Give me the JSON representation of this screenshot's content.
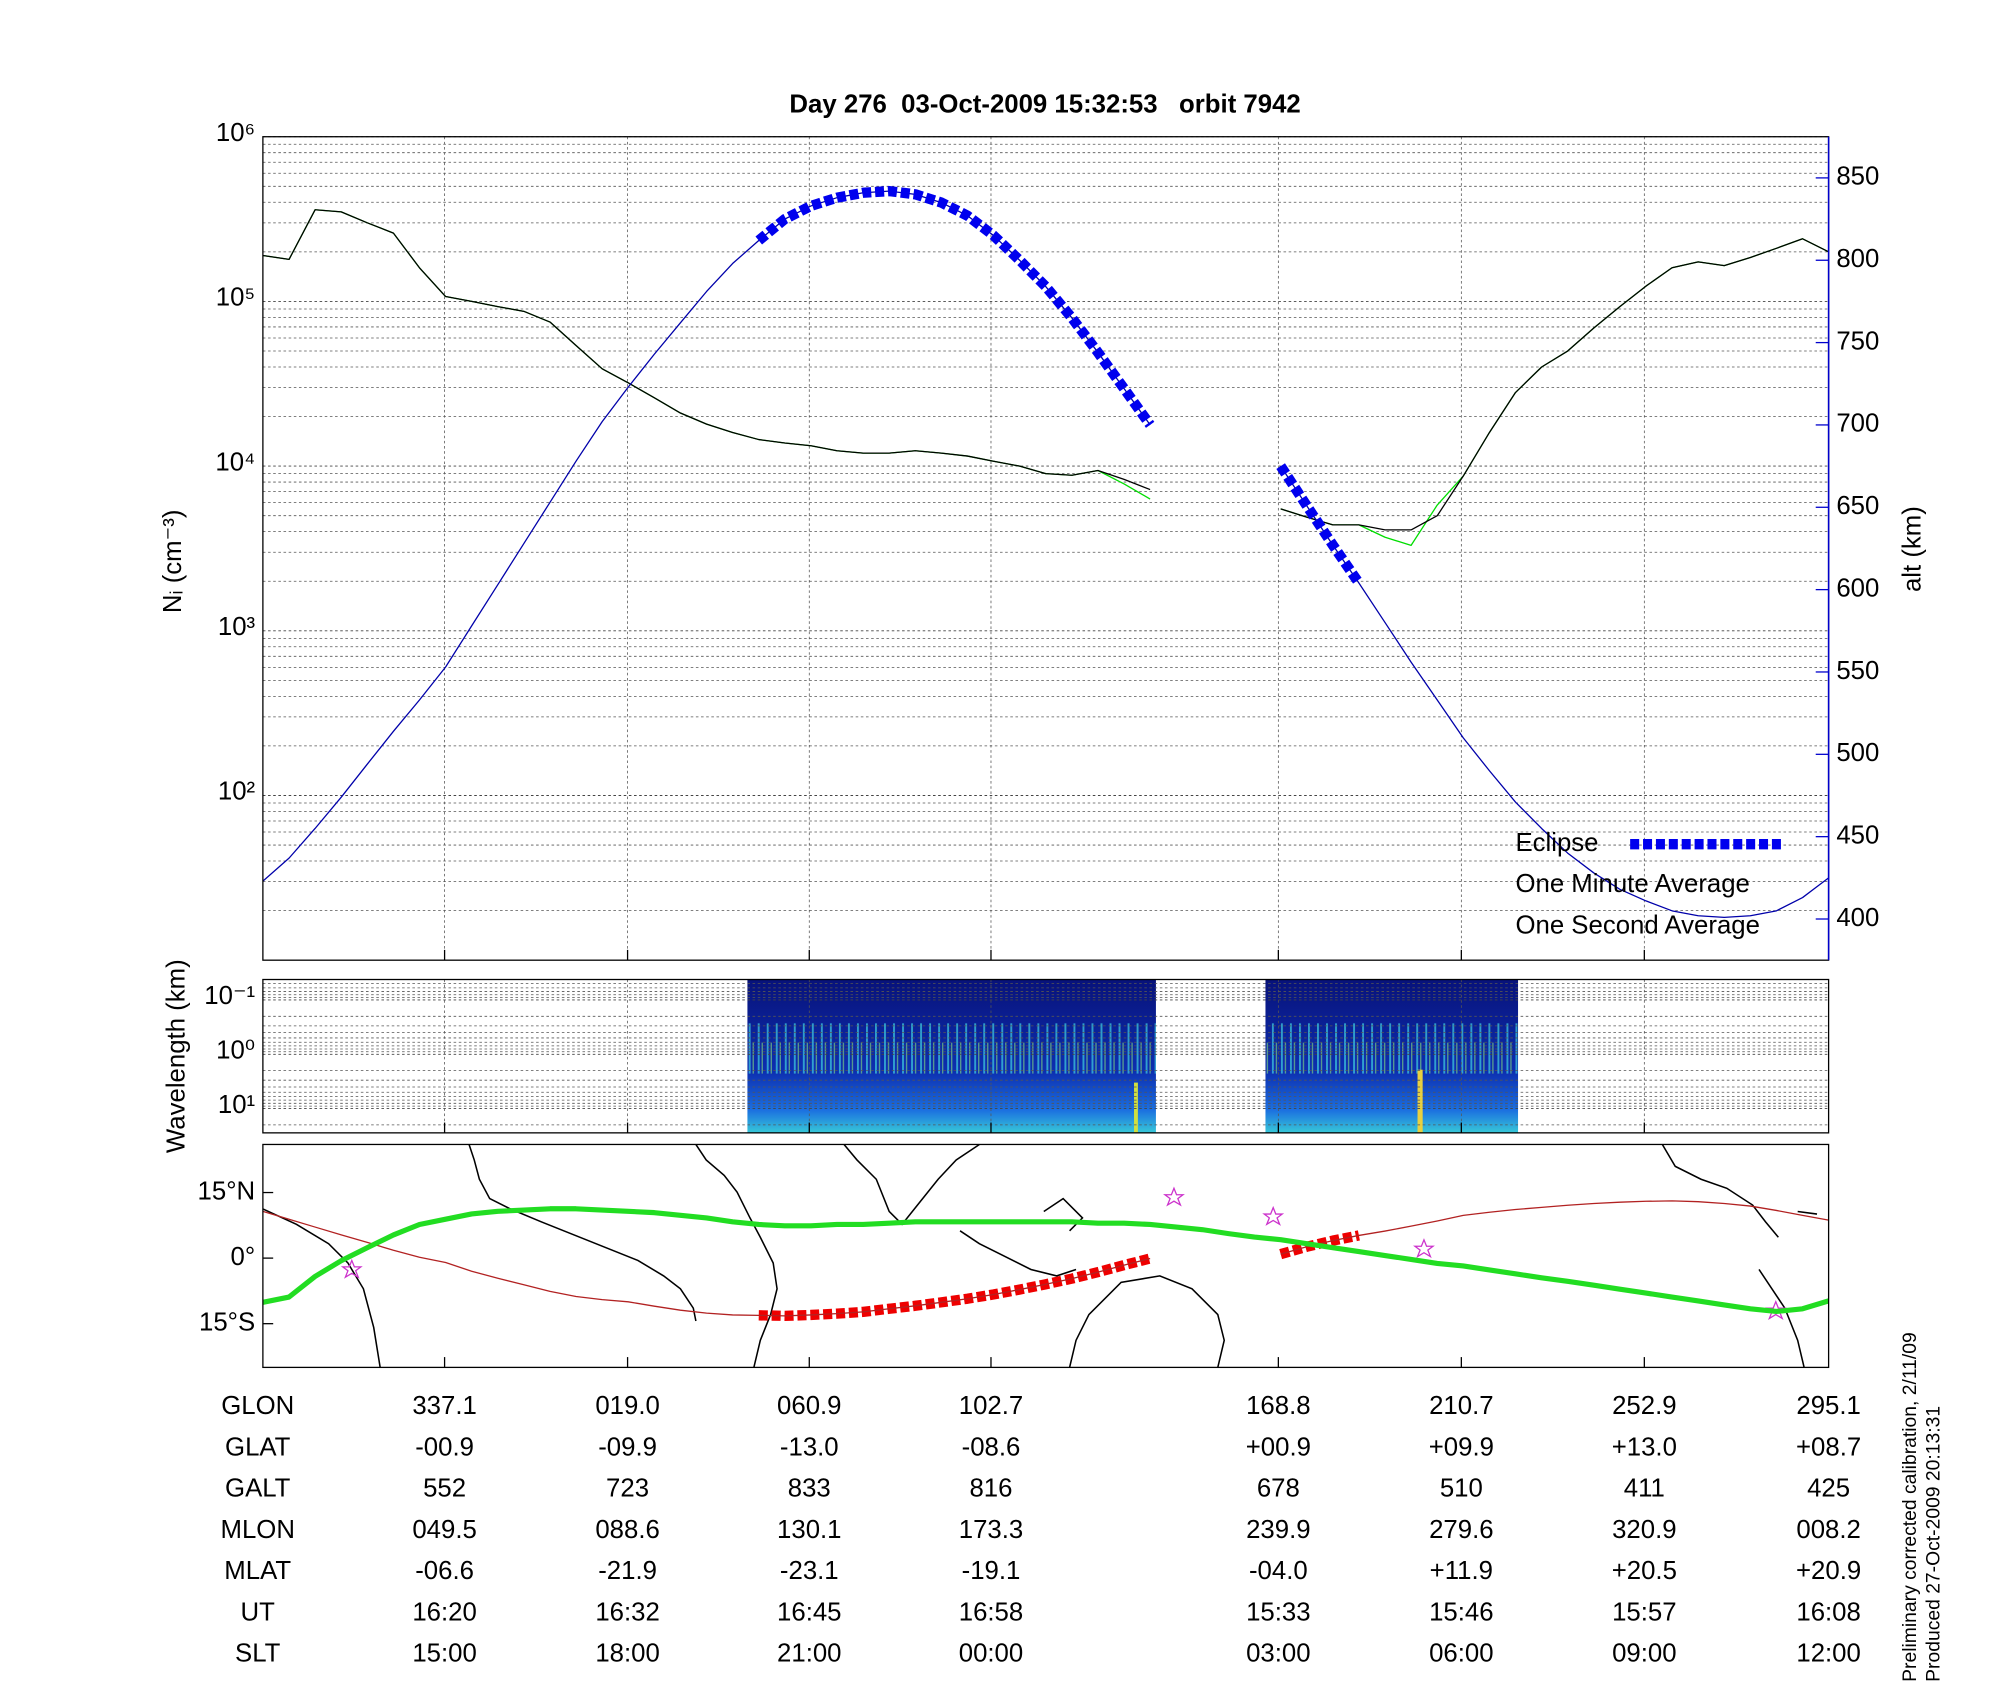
{
  "chart_data": [
    {
      "type": "line",
      "title": "Day 276  03-Oct-2009 15:32:53   orbit 7942",
      "ylabel": "Nᵢ (cm⁻³)",
      "y2label": "alt (km)",
      "y2_color": "#0000cc",
      "log_y": true,
      "grid": true,
      "minor_grid": true,
      "legend": "lower right",
      "ylim": [
        10,
        1000000
      ],
      "yticks": [
        {
          "value": 100,
          "label": "10²"
        },
        {
          "value": 1000,
          "label": "10³"
        },
        {
          "value": 10000,
          "label": "10⁴"
        },
        {
          "value": 100000,
          "label": "10⁵"
        },
        {
          "value": 1000000,
          "label": "10⁶"
        }
      ],
      "y2lim": [
        375,
        875
      ],
      "y2ticks": [
        400,
        450,
        500,
        550,
        600,
        650,
        700,
        750,
        800,
        850
      ],
      "series": [
        {
          "name": "Eclipse",
          "color": "#0000ee",
          "axis": "y2",
          "style": "eclipse",
          "values": [
            null,
            null,
            null,
            null,
            null,
            null,
            null,
            null,
            null,
            null,
            null,
            null,
            null,
            null,
            null,
            null,
            null,
            null,
            null,
            812,
            825,
            833,
            838,
            841,
            842,
            840,
            835,
            827,
            815,
            800,
            784,
            765,
            744,
            722,
            700,
            null,
            null,
            null,
            null,
            675,
            651,
            627,
            604,
            null,
            null,
            null,
            null,
            null,
            null,
            null,
            null,
            null,
            null,
            null,
            null,
            null,
            null,
            null,
            null,
            null,
            null
          ]
        },
        {
          "color": "#0000aa",
          "axis": "y2",
          "values": [
            423,
            437,
            455,
            474,
            494,
            514,
            533,
            553,
            578,
            603,
            628,
            653,
            678,
            702,
            723,
            743,
            762,
            781,
            798,
            812,
            825,
            833,
            838,
            841,
            842,
            840,
            835,
            827,
            815,
            800,
            784,
            765,
            744,
            722,
            700,
            null,
            null,
            null,
            null,
            675,
            651,
            627,
            604,
            580,
            556,
            533,
            510,
            490,
            471,
            455,
            440,
            428,
            418,
            411,
            405,
            402,
            401,
            402,
            405,
            413,
            425
          ]
        },
        {
          "name": "One Minute Average",
          "color": "#000000",
          "values": [
            190000,
            180000,
            360000,
            350000,
            300000,
            260000,
            160000,
            107000,
            100000,
            93000,
            87000,
            75000,
            54000,
            39000,
            32000,
            26000,
            21000,
            18000,
            16000,
            14500,
            13800,
            13300,
            12400,
            12000,
            12000,
            12400,
            12000,
            11500,
            10700,
            10000,
            9000,
            8800,
            9400,
            8300,
            7200,
            null,
            null,
            null,
            null,
            5500,
            4900,
            4400,
            4400,
            4100,
            4100,
            5000,
            8700,
            16000,
            28000,
            40000,
            50000,
            69000,
            93000,
            124000,
            160000,
            174000,
            165000,
            185000,
            210000,
            240000,
            200000
          ]
        },
        {
          "name": "One Second Average",
          "color": "#00dd00",
          "values": [
            190000,
            180000,
            360000,
            350000,
            300000,
            260000,
            160000,
            107000,
            100000,
            93000,
            87000,
            75000,
            54000,
            39000,
            32000,
            26000,
            21000,
            18000,
            16000,
            14500,
            13800,
            13300,
            12400,
            12000,
            12000,
            12400,
            12000,
            11500,
            10700,
            10000,
            9000,
            8800,
            9400,
            7800,
            6300,
            null,
            null,
            null,
            null,
            5500,
            4900,
            4400,
            4400,
            3700,
            3300,
            5800,
            8700,
            16000,
            28000,
            40000,
            50000,
            69000,
            93000,
            124000,
            160000,
            174000,
            165000,
            185000,
            210000,
            240000,
            200000
          ]
        }
      ]
    },
    {
      "type": "spectrogram",
      "ylabel": "Wavelength (km)",
      "log_y": true,
      "grid": true,
      "minor_grid": true,
      "ylim": [
        28,
        0.042
      ],
      "yticks": [
        {
          "value": 0.1,
          "label": "10⁻¹"
        },
        {
          "value": 1,
          "label": "10⁰"
        },
        {
          "value": 10,
          "label": "10¹"
        }
      ]
    },
    {
      "type": "map",
      "ylim": [
        -25,
        26
      ],
      "yticks": [
        {
          "value": 15,
          "label": "15°N"
        },
        {
          "value": 0,
          "label": "0°"
        },
        {
          "value": -15,
          "label": "15°S"
        }
      ],
      "series": [
        {
          "color": "#22dd22",
          "values": [
            -10.1,
            -8.9,
            -4.2,
            -0.6,
            2.4,
            5.3,
            7.7,
            8.9,
            10.1,
            10.7,
            11.0,
            11.3,
            11.3,
            11.0,
            10.7,
            10.4,
            9.8,
            9.2,
            8.3,
            7.7,
            7.4,
            7.4,
            7.7,
            7.7,
            8.0,
            8.3,
            8.3,
            8.3,
            8.3,
            8.3,
            8.3,
            8.3,
            8.0,
            8.0,
            7.7,
            7.1,
            6.5,
            5.6,
            4.8,
            4.2,
            3.3,
            2.4,
            1.5,
            0.6,
            -0.3,
            -1.2,
            -1.8,
            -2.7,
            -3.6,
            -4.5,
            -5.3,
            -6.2,
            -7.1,
            -8.0,
            -8.9,
            -9.8,
            -10.7,
            -11.6,
            -12.2,
            -11.6,
            -9.8
          ]
        },
        {
          "color": "#b22222",
          "values": [
            10.7,
            8.9,
            7.1,
            5.3,
            3.6,
            1.8,
            0.2,
            -1.0,
            -3.0,
            -4.6,
            -6.1,
            -7.6,
            -8.8,
            -9.5,
            -10.0,
            -11.0,
            -11.9,
            -12.6,
            -13.0,
            -13.1,
            -13.2,
            -13.0,
            -12.7,
            -12.3,
            -11.6,
            -10.9,
            -10.1,
            -9.3,
            -8.3,
            -7.2,
            -6.0,
            -4.7,
            -3.2,
            -1.6,
            -0.1,
            null,
            null,
            null,
            null,
            0.9,
            2.6,
            4.0,
            5.2,
            6.2,
            7.3,
            8.5,
            9.8,
            10.5,
            11.1,
            11.6,
            12.1,
            12.5,
            12.8,
            13.0,
            13.1,
            12.9,
            12.5,
            11.9,
            10.9,
            9.8,
            8.7
          ]
        },
        {
          "color": "#ee0000",
          "style": "eclipse",
          "values": [
            null,
            null,
            null,
            null,
            null,
            null,
            null,
            null,
            null,
            null,
            null,
            null,
            null,
            null,
            null,
            null,
            null,
            null,
            null,
            -13.1,
            -13.2,
            -13.0,
            -12.7,
            -12.3,
            -11.6,
            -10.9,
            -10.1,
            -9.3,
            -8.3,
            -7.2,
            -6.0,
            -4.7,
            -3.2,
            -1.6,
            -0.1,
            null,
            null,
            null,
            null,
            0.9,
            2.6,
            4.0,
            5.2,
            null,
            null,
            null,
            null,
            null,
            null,
            null,
            null,
            null,
            null,
            null,
            null,
            null,
            null,
            null,
            null,
            null,
            null
          ]
        }
      ]
    }
  ],
  "table": {
    "rows": [
      {
        "label": "GLON",
        "cells": [
          "337.1",
          "019.0",
          "060.9",
          "102.7",
          "168.8",
          "210.7",
          "252.9",
          "295.1"
        ]
      },
      {
        "label": "GLAT",
        "cells": [
          "-00.9",
          "-09.9",
          "-13.0",
          "-08.6",
          "+00.9",
          "+09.9",
          "+13.0",
          "+08.7"
        ]
      },
      {
        "label": "GALT",
        "cells": [
          "552",
          "723",
          "833",
          "816",
          "678",
          "510",
          "411",
          "425"
        ]
      },
      {
        "label": "MLON",
        "cells": [
          "049.5",
          "088.6",
          "130.1",
          "173.3",
          "239.9",
          "279.6",
          "320.9",
          "008.2"
        ]
      },
      {
        "label": "MLAT",
        "cells": [
          "-06.6",
          "-21.9",
          "-23.1",
          "-19.1",
          "-04.0",
          "+11.9",
          "+20.5",
          "+20.9"
        ]
      },
      {
        "label": "UT",
        "cells": [
          "16:20",
          "16:32",
          "16:45",
          "16:58",
          "15:33",
          "15:46",
          "15:57",
          "16:08"
        ]
      },
      {
        "label": "SLT",
        "cells": [
          "15:00",
          "18:00",
          "21:00",
          "00:00",
          "03:00",
          "06:00",
          "09:00",
          "12:00"
        ]
      }
    ]
  },
  "notes": [
    "Preliminary corrected calibration, 2/11/09",
    "Produced 27-Oct-2009 20:13:31"
  ]
}
